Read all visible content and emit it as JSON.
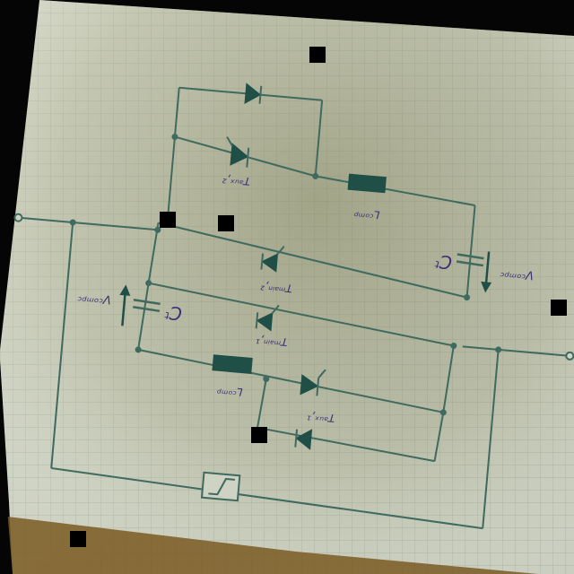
{
  "labels": {
    "Ct_top": "Cᵗ",
    "Ct_bot": "Cᵗ",
    "L_top": "Lᶜᵒᵐᵖ",
    "L_bot": "Lᶜᵒᵐᵖ",
    "Vcomp_top": "Vᶜᵒᵐᵖᶜ",
    "Vcomp_bot": "Vᶜᵒᵐᵖᶜ",
    "SCR_top": "Tᵃᵘˣ,²",
    "SCR_mid1": "Tᵐᵃⁱⁿ,²",
    "SCR_mid2": "Tᵐᵃⁱⁿ,¹",
    "SCR_bot": "Tᵃᵘˣ,¹"
  },
  "colors": {
    "wire": "#3f6a5f",
    "component": "#1f4f46",
    "ink_label": "#3b2f7a",
    "paper": "#cfd3c4",
    "grid": "#9aa397"
  },
  "icons": [
    "diode-icon",
    "thyristor-icon",
    "inductor-icon",
    "capacitor-icon",
    "current-source-icon",
    "terminal-icon"
  ]
}
